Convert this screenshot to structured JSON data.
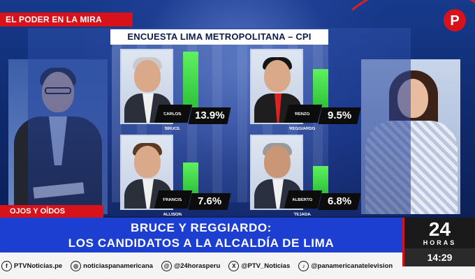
{
  "broadcast": {
    "section_tag": "EL PODER EN LA MIRA",
    "segment_tag": "OJOS Y OÍDOS",
    "headline_line1": "BRUCE Y REGGIARDO:",
    "headline_line2": "LOS CANDIDATOS A LA ALCALDÍA DE LIMA",
    "channel_logo": "P",
    "brand_number": "24",
    "brand_word": "HORAS",
    "time": "14:29"
  },
  "board": {
    "title": "ENCUESTA LIMA METROPOLITANA – CPI"
  },
  "candidates": [
    {
      "first": "CARLOS",
      "last": "BRUCE",
      "percent": "13.9%",
      "value": 13.9
    },
    {
      "first": "RENZO",
      "last": "REGGIARDO",
      "percent": "9.5%",
      "value": 9.5
    },
    {
      "first": "FRANCIS",
      "last": "ALLISON",
      "percent": "7.6%",
      "value": 7.6
    },
    {
      "first": "ALBERTO",
      "last": "TEJADA",
      "percent": "6.8%",
      "value": 6.8
    }
  ],
  "social": [
    {
      "icon": "facebook-icon",
      "glyph": "f",
      "handle": "PTVNoticias.pe"
    },
    {
      "icon": "instagram-icon",
      "glyph": "◎",
      "handle": "noticiaspanamericana"
    },
    {
      "icon": "threads-icon",
      "glyph": "@",
      "handle": "@24horasperu"
    },
    {
      "icon": "x-icon",
      "glyph": "X",
      "handle": "@PTV_Noticias"
    },
    {
      "icon": "tiktok-icon",
      "glyph": "♪",
      "handle": "@panamericanatelevision"
    }
  ],
  "colors": {
    "accent_red": "#d8121b",
    "headline_blue": "#1d3fd1",
    "bar_green": "#2fc23a"
  }
}
